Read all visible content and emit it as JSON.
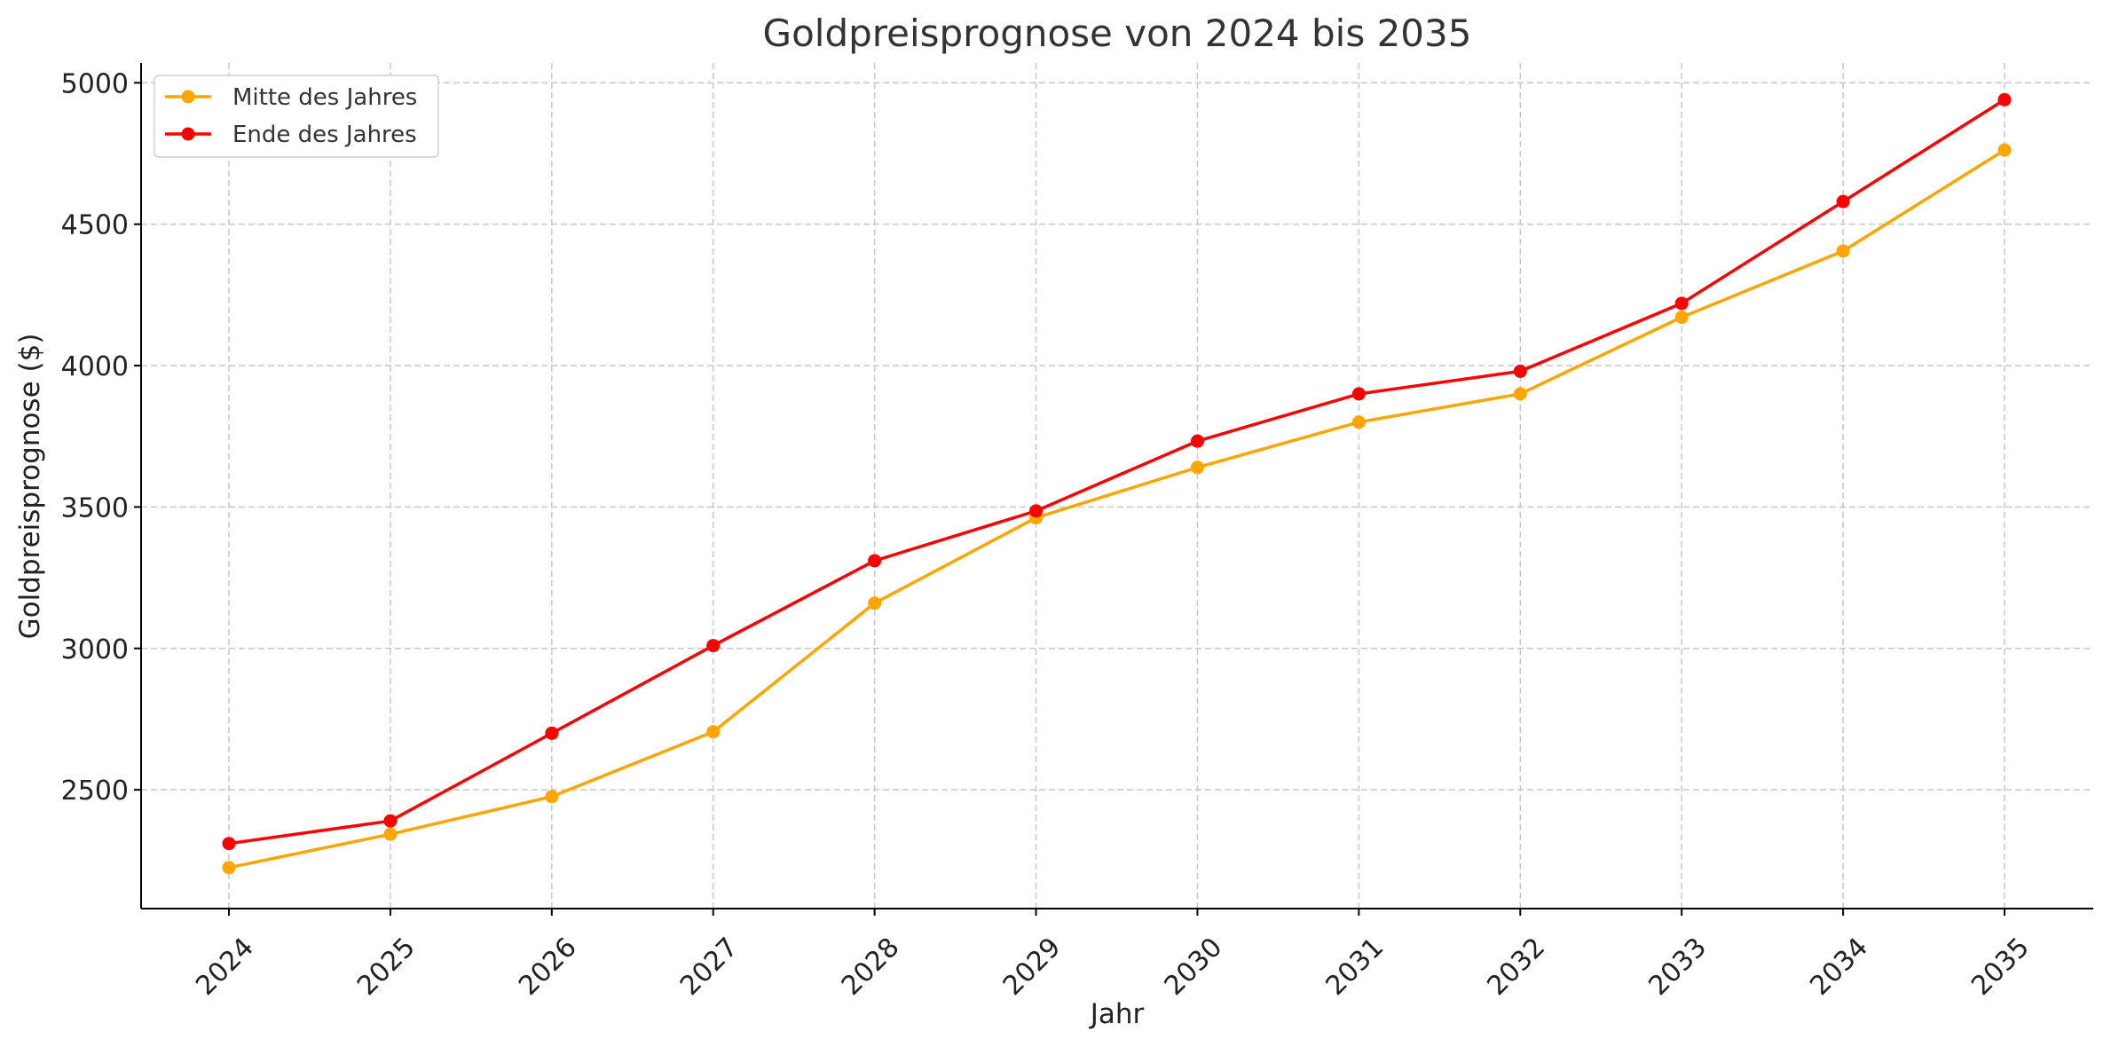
{
  "chart_data": {
    "type": "line",
    "title": "Goldpreisprognose von 2024 bis 2035",
    "xlabel": "Jahr",
    "ylabel": "Goldpreisprognose ($)",
    "categories": [
      "2024",
      "2025",
      "2026",
      "2027",
      "2028",
      "2029",
      "2030",
      "2031",
      "2032",
      "2033",
      "2034",
      "2035"
    ],
    "yticks": [
      2500,
      3000,
      3500,
      4000,
      4500,
      5000
    ],
    "ylim": [
      2080,
      5070
    ],
    "grid": true,
    "legend_position": "top-left",
    "series": [
      {
        "name": "Mitte des Jahres",
        "color": "#FFA500",
        "values": [
          2225,
          2343,
          2476,
          2705,
          3160,
          3462,
          3640,
          3800,
          3900,
          4171,
          4405,
          4762
        ]
      },
      {
        "name": "Ende des Jahres",
        "color": "#FF0000",
        "values": [
          2310,
          2390,
          2700,
          3010,
          3310,
          3486,
          3733,
          3900,
          3980,
          4220,
          4580,
          4940
        ]
      }
    ]
  }
}
